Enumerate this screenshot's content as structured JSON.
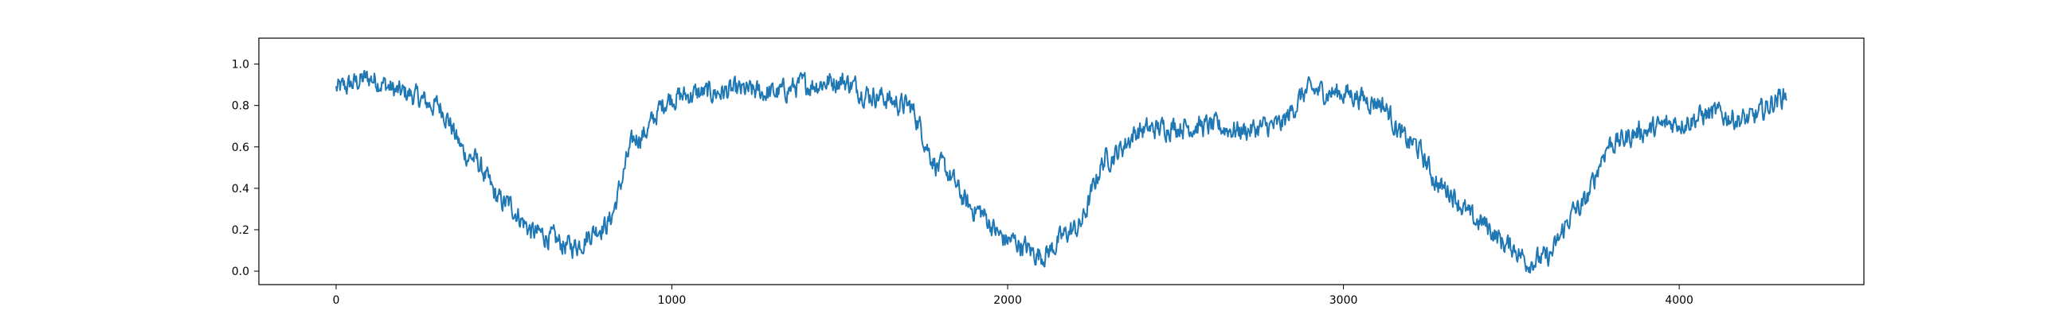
{
  "chart_data": {
    "type": "line",
    "title": "",
    "xlabel": "",
    "ylabel": "",
    "xlim": [
      -230,
      4550
    ],
    "ylim": [
      -0.065,
      1.125
    ],
    "grid": false,
    "legend": "none",
    "series_color": "#1f77b4",
    "x_ticks": [
      0,
      1000,
      2000,
      3000,
      4000
    ],
    "x_tick_labels": [
      "0",
      "1000",
      "2000",
      "3000",
      "4000"
    ],
    "y_ticks": [
      0.0,
      0.2,
      0.4,
      0.6,
      0.8,
      1.0
    ],
    "y_tick_labels": [
      "0.0",
      "0.2",
      "0.4",
      "0.6",
      "0.8",
      "1.0"
    ],
    "series": [
      {
        "x": [
          0,
          100,
          200,
          300,
          400,
          500,
          600,
          700,
          800,
          900,
          1000,
          1100,
          1200,
          1300,
          1400,
          1500,
          1600,
          1700,
          1800,
          1900,
          2000,
          2100,
          2200,
          2300,
          2400,
          2500,
          2600,
          2700,
          2800,
          2900,
          3000,
          3100,
          3200,
          3300,
          3400,
          3500,
          3550,
          3600,
          3700,
          3800,
          3900,
          4000,
          4100,
          4200,
          4320
        ],
        "values": [
          0.88,
          0.93,
          0.86,
          0.8,
          0.55,
          0.33,
          0.18,
          0.12,
          0.22,
          0.65,
          0.84,
          0.86,
          0.87,
          0.86,
          0.9,
          0.92,
          0.85,
          0.8,
          0.5,
          0.3,
          0.15,
          0.08,
          0.2,
          0.55,
          0.68,
          0.7,
          0.7,
          0.68,
          0.7,
          0.87,
          0.86,
          0.82,
          0.62,
          0.4,
          0.24,
          0.12,
          0.05,
          0.06,
          0.3,
          0.62,
          0.68,
          0.72,
          0.76,
          0.73,
          0.85
        ]
      }
    ]
  }
}
